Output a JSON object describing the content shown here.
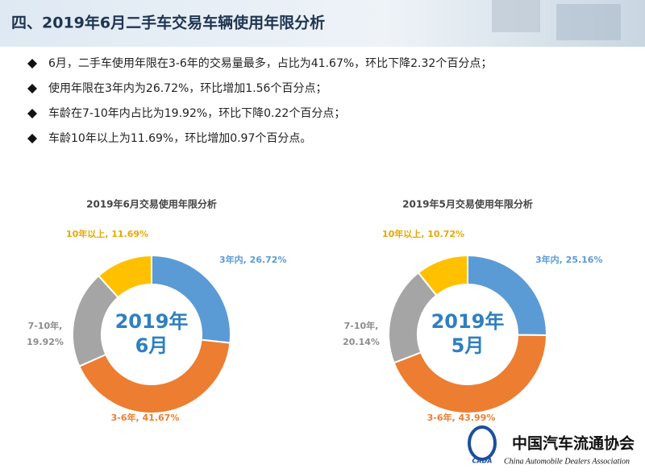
{
  "header": {
    "title": "四、2019年6月二手车交易车辆使用年限分析"
  },
  "bullets": [
    "6月，二手车使用年限在3-6年的交易量最多，占比为41.67%，环比下降2.32个百分点；",
    "使用年限在3年内为26.72%，环比增加1.56个百分点；",
    "车龄在7-10年内占比为19.92%，环比下降0.22个百分点；",
    "车龄10年以上为11.69%，环比增加0.97个百分点。"
  ],
  "chart_data": [
    {
      "type": "donut",
      "title": "2019年6月交易使用年限分析",
      "center_label": [
        "2019年",
        "6月"
      ],
      "categories": [
        "3年内",
        "3-6年",
        "7-10年",
        "10年以上"
      ],
      "values": [
        26.72,
        41.67,
        19.92,
        11.69
      ],
      "value_labels": [
        "3年内, 26.72%",
        "3-6年, 41.67%",
        "7-10年, 19.92%",
        "10年以上, 11.69%"
      ],
      "colors": [
        "#5b9bd5",
        "#ed7d31",
        "#a5a5a5",
        "#ffc000"
      ]
    },
    {
      "type": "donut",
      "title": "2019年5月交易使用年限分析",
      "center_label": [
        "2019年",
        "5月"
      ],
      "categories": [
        "3年内",
        "3-6年",
        "7-10年",
        "10年以上"
      ],
      "values": [
        25.16,
        43.99,
        20.14,
        10.72
      ],
      "value_labels": [
        "3年内, 25.16%",
        "3-6年, 43.99%",
        "7-10年, 20.14%",
        "10年以上, 10.72%"
      ],
      "colors": [
        "#5b9bd5",
        "#ed7d31",
        "#a5a5a5",
        "#ffc000"
      ]
    }
  ],
  "footer": {
    "org": "中国汽车流通协会",
    "org_en": "China Automobile Dealers Association",
    "abbr": "CADA"
  }
}
